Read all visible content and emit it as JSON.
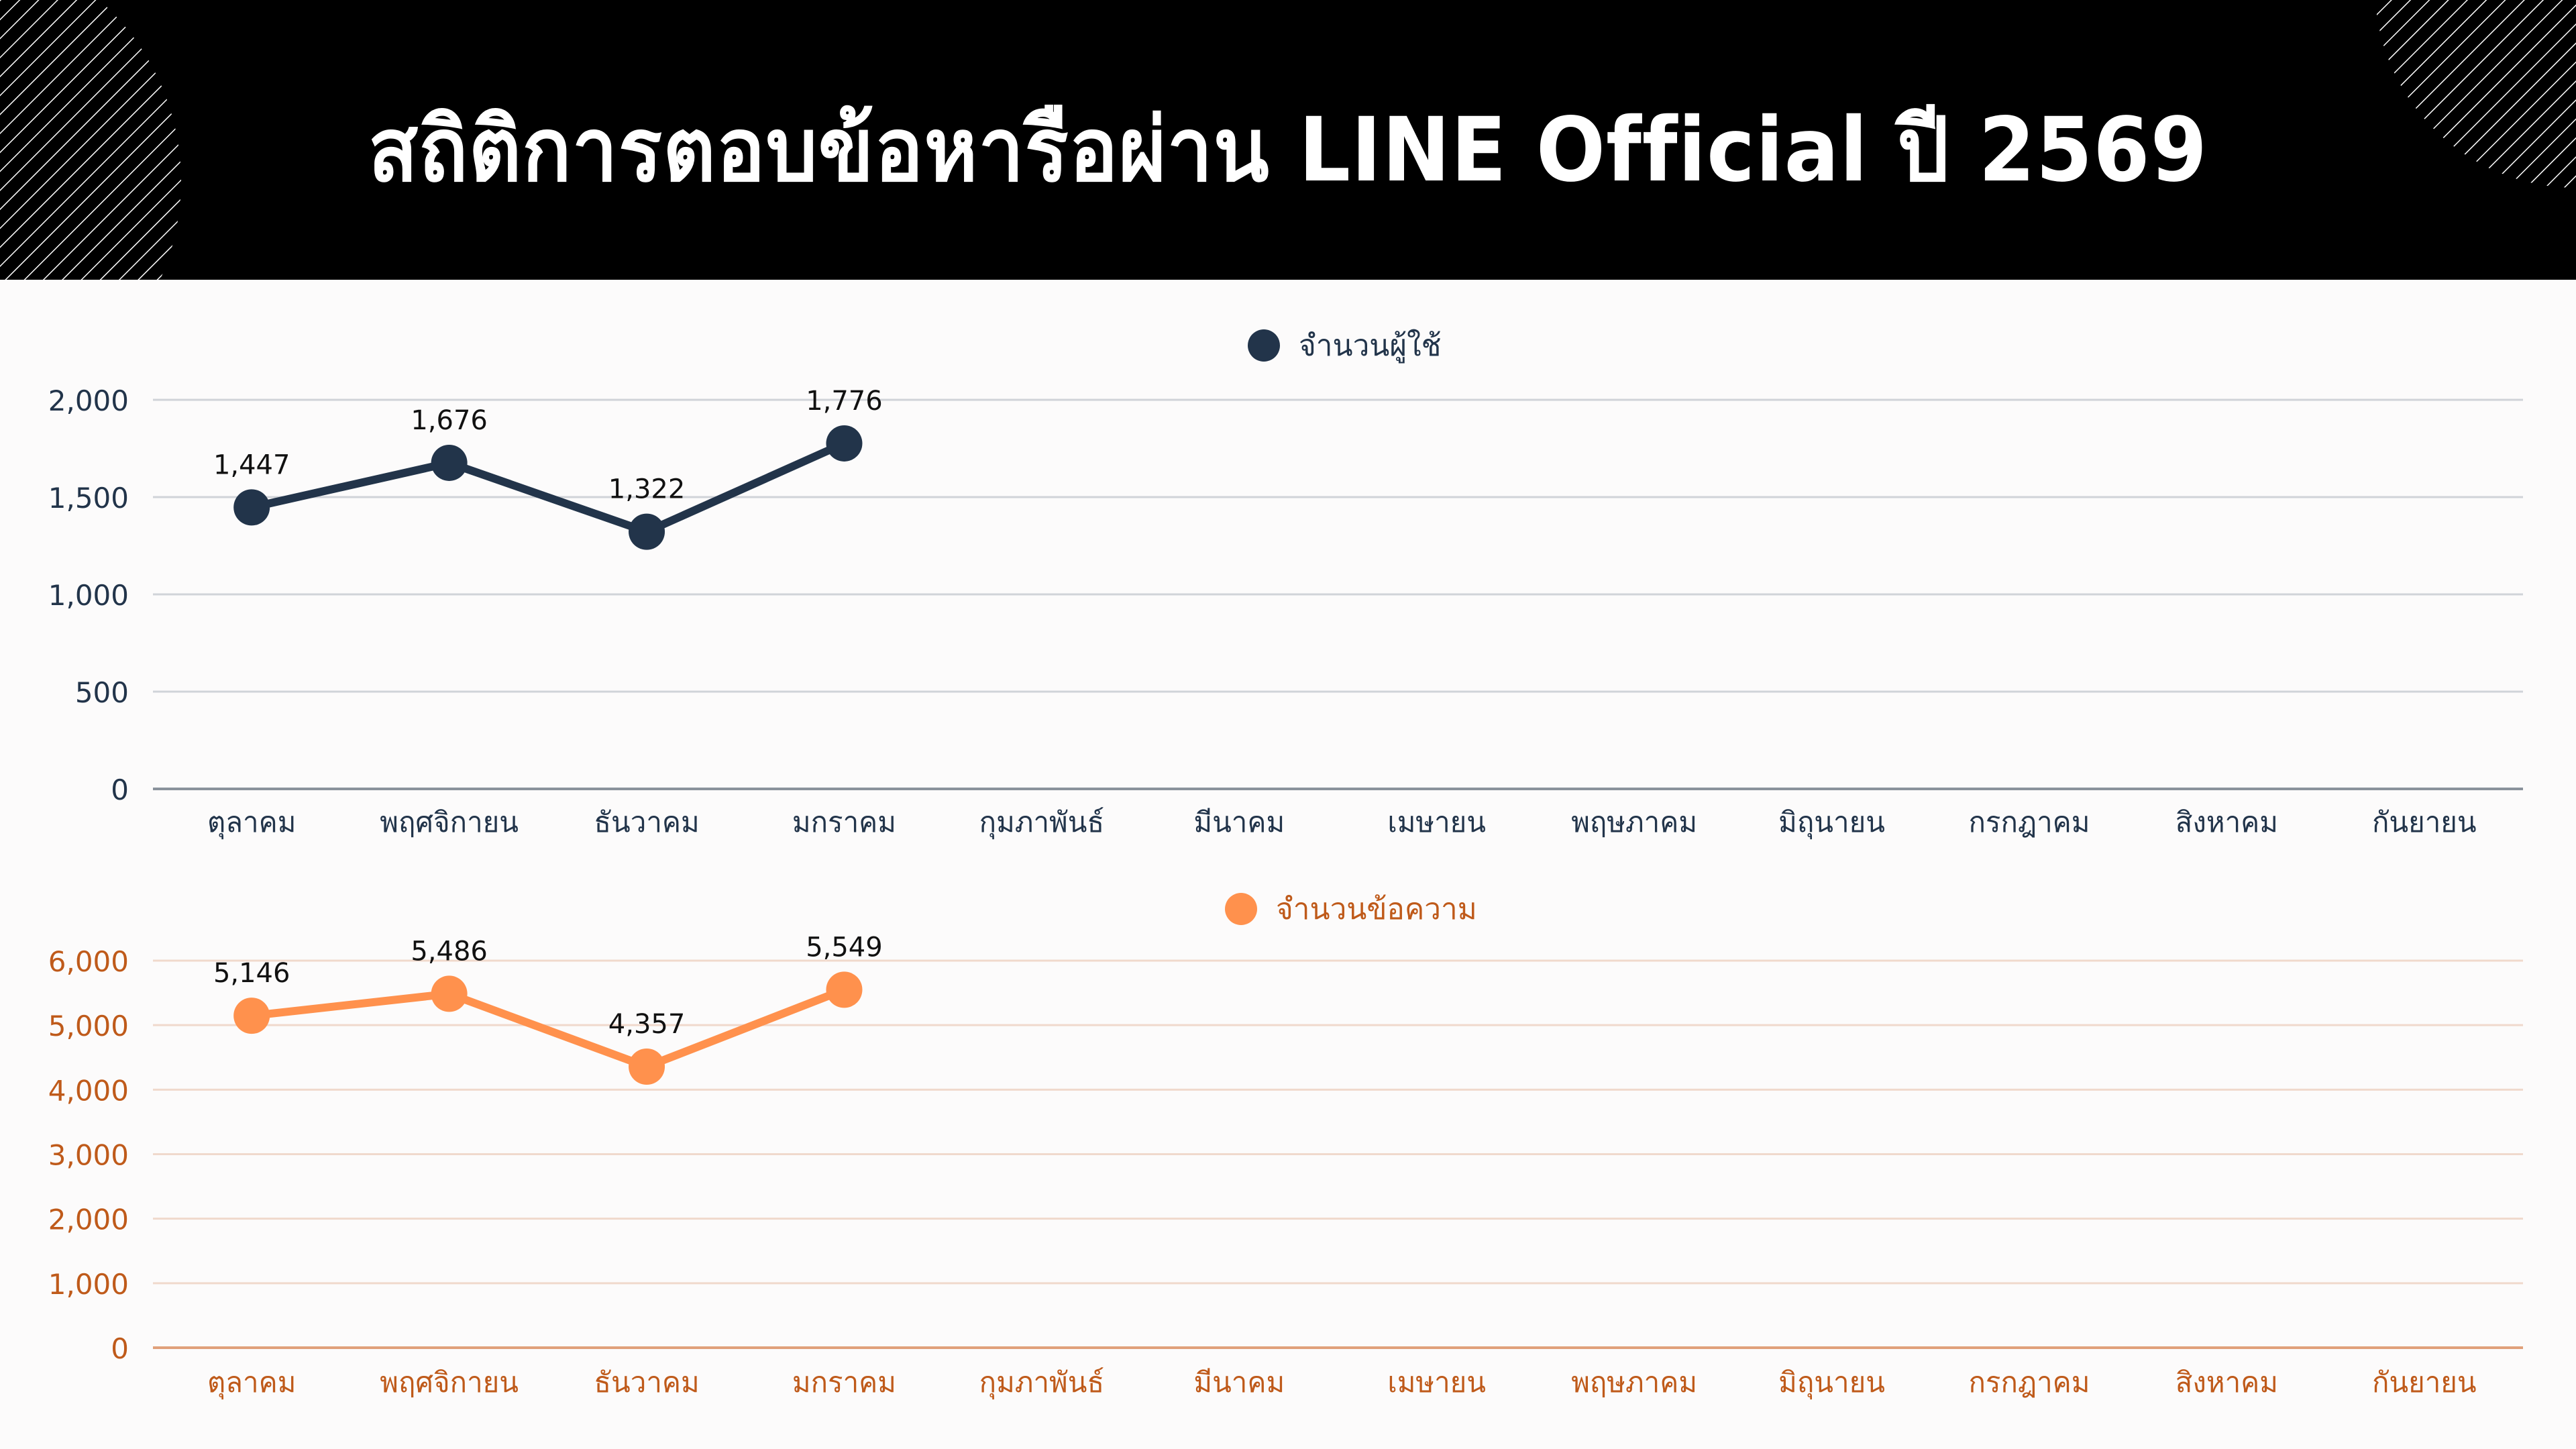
{
  "header": {
    "title": "สถิติการตอบข้อหารือผ่าน LINE Official ปี 2569"
  },
  "colors": {
    "header_bg": "#000000",
    "users_series": "#22344a",
    "messages_series": "#ff914d",
    "messages_axis_text": "#bf5a1a",
    "page_bg": "#fcfbfb"
  },
  "chart_data": [
    {
      "type": "line",
      "title": "",
      "legend": [
        "จำนวนผู้ใช้"
      ],
      "legend_position": "top",
      "categories": [
        "ตุลาคม",
        "พฤศจิกายน",
        "ธันวาคม",
        "มกราคม",
        "กุมภาพันธ์",
        "มีนาคม",
        "เมษายน",
        "พฤษภาคม",
        "มิถุนายน",
        "กรกฎาคม",
        "สิงหาคม",
        "กันยายน"
      ],
      "series": [
        {
          "name": "จำนวนผู้ใช้",
          "values": [
            1447,
            1676,
            1322,
            1776,
            null,
            null,
            null,
            null,
            null,
            null,
            null,
            null
          ],
          "labels": [
            "1,447",
            "1,676",
            "1,322",
            "1,776"
          ],
          "color": "#22344a"
        }
      ],
      "yticks": [
        "0",
        "500",
        "1,000",
        "1,500",
        "2,000"
      ],
      "ylim": [
        0,
        2000
      ],
      "xlabel": "",
      "ylabel": "",
      "grid": true
    },
    {
      "type": "line",
      "title": "",
      "legend": [
        "จำนวนข้อความ"
      ],
      "legend_position": "top",
      "categories": [
        "ตุลาคม",
        "พฤศจิกายน",
        "ธันวาคม",
        "มกราคม",
        "กุมภาพันธ์",
        "มีนาคม",
        "เมษายน",
        "พฤษภาคม",
        "มิถุนายน",
        "กรกฎาคม",
        "สิงหาคม",
        "กันยายน"
      ],
      "series": [
        {
          "name": "จำนวนข้อความ",
          "values": [
            5146,
            5486,
            4357,
            5549,
            null,
            null,
            null,
            null,
            null,
            null,
            null,
            null
          ],
          "labels": [
            "5,146",
            "5,486",
            "4,357",
            "5,549"
          ],
          "color": "#ff914d"
        }
      ],
      "yticks": [
        "0",
        "1,000",
        "2,000",
        "3,000",
        "4,000",
        "5,000",
        "6,000"
      ],
      "ylim": [
        0,
        6000
      ],
      "xlabel": "",
      "ylabel": "",
      "grid": true
    }
  ]
}
